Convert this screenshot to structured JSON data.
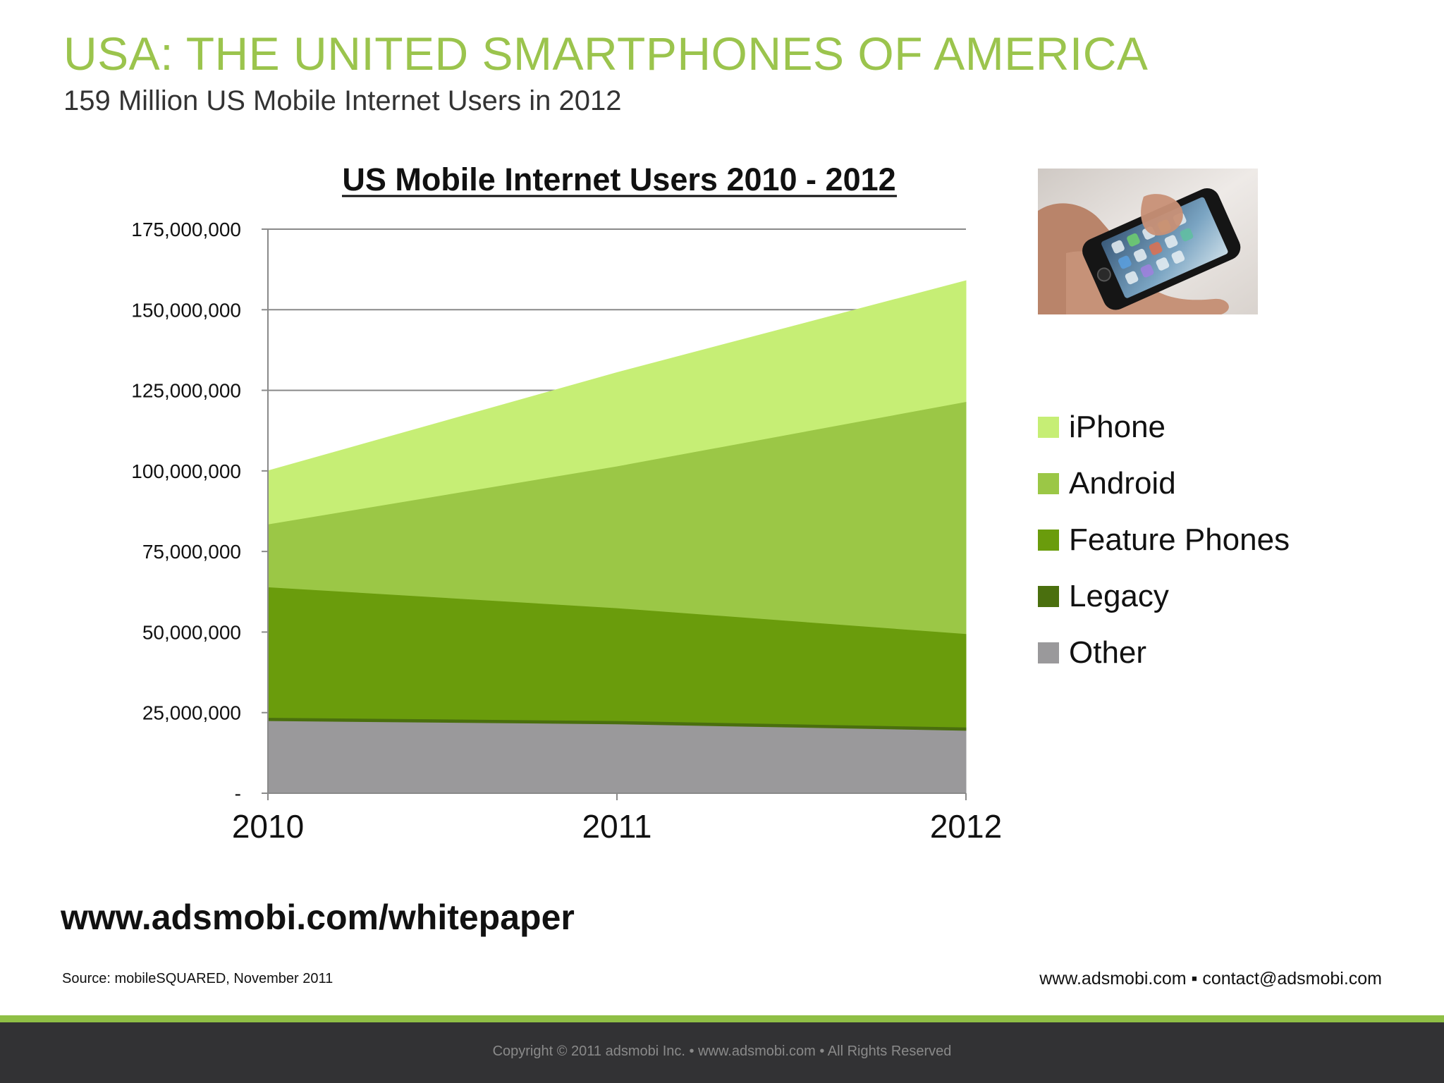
{
  "slide": {
    "title": "USA: THE UNITED SMARTPHONES OF AMERICA",
    "subtitle": "159 Million US Mobile Internet Users in 2012"
  },
  "chart_data": {
    "type": "area",
    "stacked": true,
    "title": "US Mobile Internet Users 2010 - 2012",
    "xlabel": "",
    "ylabel": "",
    "x": [
      "2010",
      "2011",
      "2012"
    ],
    "ylim": [
      0,
      175000000
    ],
    "yticks": [
      0,
      25000000,
      50000000,
      75000000,
      100000000,
      125000000,
      150000000,
      175000000
    ],
    "ytick_labels": [
      "-",
      "25,000,000",
      "50,000,000",
      "75,000,000",
      "100,000,000",
      "125,000,000",
      "150,000,000",
      "175,000,000"
    ],
    "grid": true,
    "legend_position": "right",
    "series": [
      {
        "name": "Other",
        "color": "#9a999b",
        "values": [
          22500000,
          21500000,
          19500000
        ]
      },
      {
        "name": "Legacy",
        "color": "#4a6f0e",
        "values": [
          1000000,
          1000000,
          1000000
        ]
      },
      {
        "name": "Feature Phones",
        "color": "#6a9c0c",
        "values": [
          40500000,
          35000000,
          29000000
        ]
      },
      {
        "name": "Android",
        "color": "#9bc746",
        "values": [
          19500000,
          44000000,
          72000000
        ]
      },
      {
        "name": "iPhone",
        "color": "#c6ee75",
        "values": [
          16500000,
          29000000,
          37500000
        ]
      }
    ]
  },
  "legend": {
    "items": [
      {
        "label": "iPhone",
        "color": "#c6ee75"
      },
      {
        "label": "Android",
        "color": "#9bc746"
      },
      {
        "label": "Feature Phones",
        "color": "#6a9c0c"
      },
      {
        "label": "Legacy",
        "color": "#4a6f0e"
      },
      {
        "label": "Other",
        "color": "#9a999b"
      }
    ]
  },
  "footer": {
    "whitepaper_link": "www.adsmobi.com/whitepaper",
    "source": "Source: mobileSQUARED, November 2011",
    "contact": "www.adsmobi.com ▪ contact@adsmobi.com",
    "copyright": "Copyright © 2011 adsmobi Inc. • www.adsmobi.com • All Rights Reserved"
  },
  "colors": {
    "title_green": "#9bc44d",
    "footer_accent": "#8fbf45",
    "footer_bar": "#323234"
  },
  "image": {
    "icon": "smartphone-photo-icon"
  }
}
